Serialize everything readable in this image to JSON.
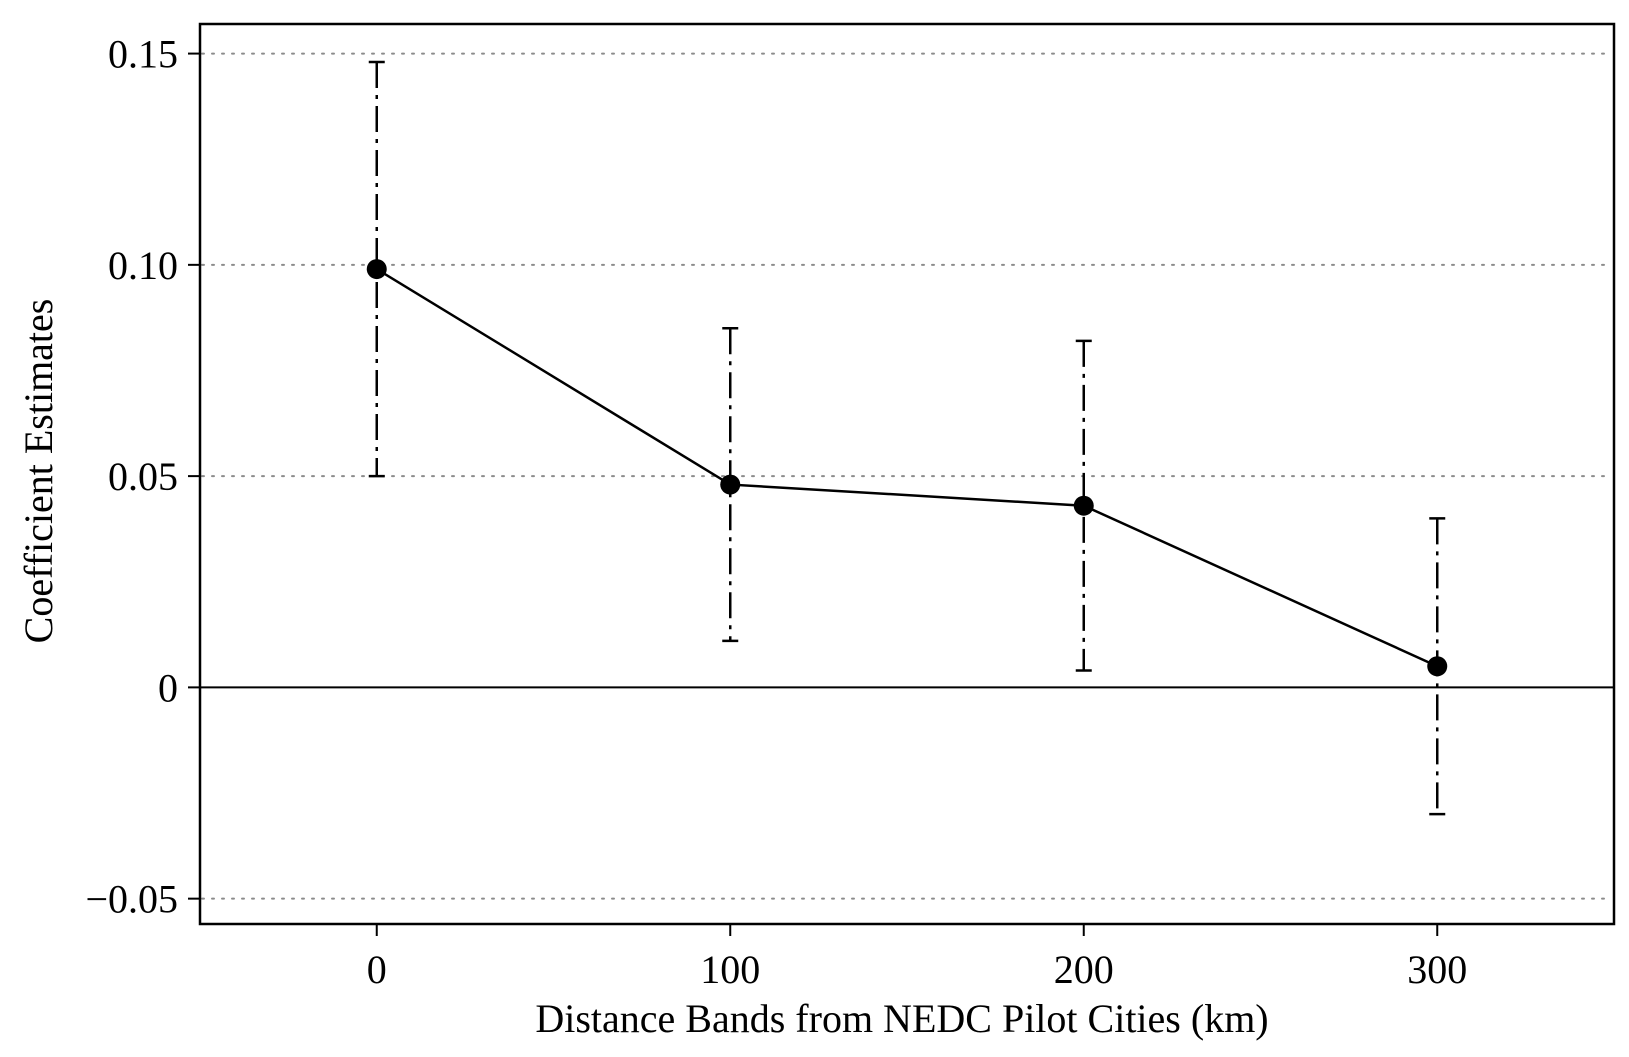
{
  "chart_data": {
    "type": "line",
    "title": "",
    "xlabel": "Distance Bands from NEDC Pilot Cities (km)",
    "ylabel": "Coefficient Estimates",
    "xlim": [
      -50,
      350
    ],
    "ylim": [
      -0.056,
      0.157
    ],
    "x_ticks": [
      0,
      100,
      200,
      300
    ],
    "x_tick_labels": [
      "0",
      "100",
      "200",
      "300"
    ],
    "y_ticks": [
      -0.05,
      0,
      0.05,
      0.1,
      0.15
    ],
    "y_tick_labels": [
      "−0.05",
      "0",
      "0.05",
      "0.10",
      "0.15"
    ],
    "grid": "dotted horizontal gridlines at y ticks",
    "reference_line_y": 0,
    "legend": "none",
    "series": [
      {
        "x": [
          0,
          100,
          200,
          300
        ],
        "values": [
          0.099,
          0.048,
          0.043,
          0.005
        ],
        "ci_lower": [
          0.05,
          0.011,
          0.004,
          -0.03
        ],
        "ci_upper": [
          0.148,
          0.085,
          0.082,
          0.04
        ],
        "color": "#000000"
      }
    ]
  }
}
